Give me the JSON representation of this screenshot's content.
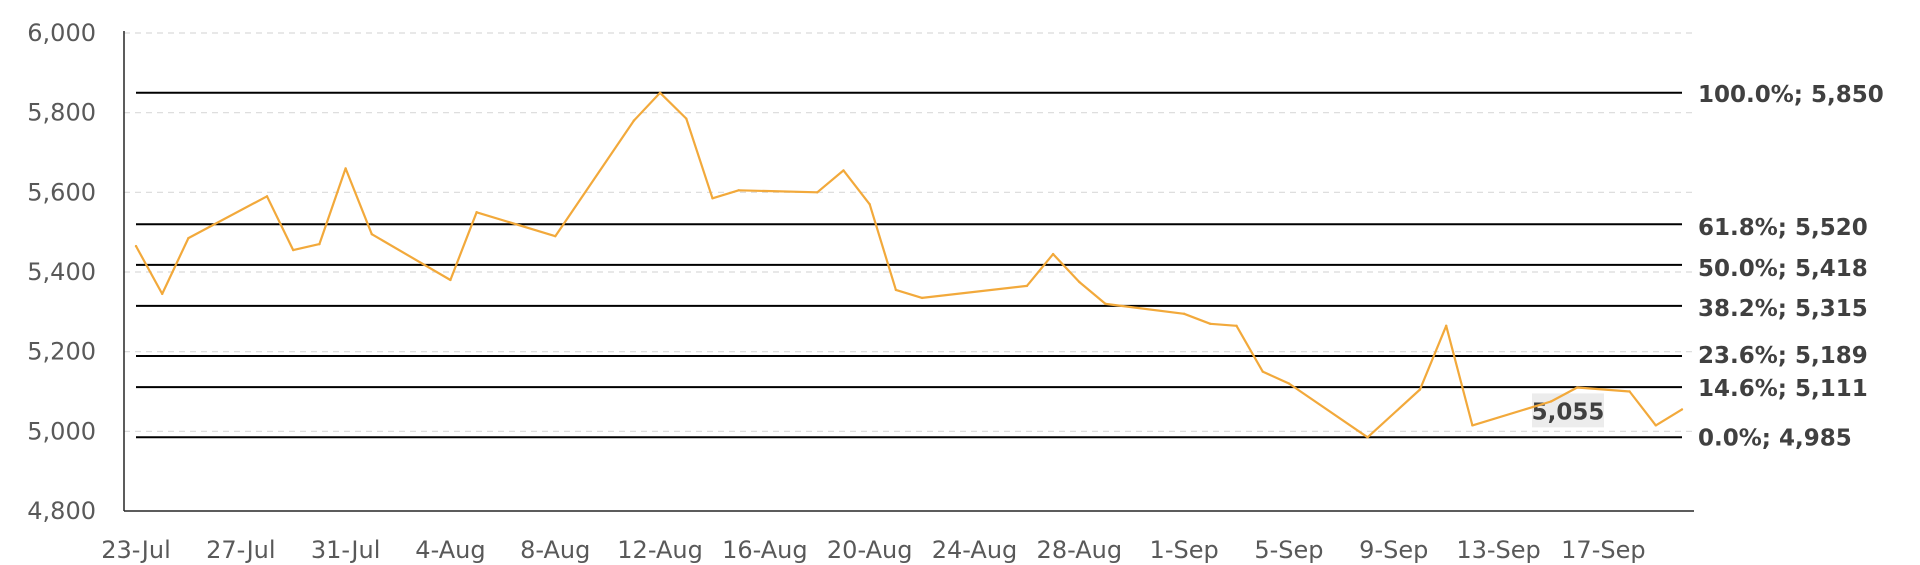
{
  "chart_data": {
    "type": "line",
    "title": "",
    "xlabel": "",
    "ylabel": "",
    "ylim": [
      4800,
      6000
    ],
    "y_ticks": [
      "4,800",
      "5,000",
      "5,200",
      "5,400",
      "5,600",
      "5,800",
      "6,000"
    ],
    "x_tick_labels": [
      "23-Jul",
      "27-Jul",
      "31-Jul",
      "4-Aug",
      "8-Aug",
      "12-Aug",
      "16-Aug",
      "20-Aug",
      "24-Aug",
      "28-Aug",
      "1-Sep",
      "5-Sep",
      "9-Sep",
      "13-Sep",
      "17-Sep"
    ],
    "x_start": "23-Jul",
    "x_end": "20-Sep",
    "grid": "horizontal dashed",
    "series": [
      {
        "color": "#F2A93B",
        "points": [
          {
            "x": "23-Jul",
            "y": 5465
          },
          {
            "x": "24-Jul",
            "y": 5345
          },
          {
            "x": "25-Jul",
            "y": 5485
          },
          {
            "x": "28-Jul",
            "y": 5590
          },
          {
            "x": "29-Jul",
            "y": 5455
          },
          {
            "x": "30-Jul",
            "y": 5470
          },
          {
            "x": "31-Jul",
            "y": 5660
          },
          {
            "x": "1-Aug",
            "y": 5495
          },
          {
            "x": "4-Aug",
            "y": 5380
          },
          {
            "x": "5-Aug",
            "y": 5550
          },
          {
            "x": "8-Aug",
            "y": 5490
          },
          {
            "x": "11-Aug",
            "y": 5780
          },
          {
            "x": "12-Aug",
            "y": 5850
          },
          {
            "x": "13-Aug",
            "y": 5785
          },
          {
            "x": "14-Aug",
            "y": 5585
          },
          {
            "x": "15-Aug",
            "y": 5605
          },
          {
            "x": "18-Aug",
            "y": 5600
          },
          {
            "x": "19-Aug",
            "y": 5655
          },
          {
            "x": "20-Aug",
            "y": 5570
          },
          {
            "x": "21-Aug",
            "y": 5355
          },
          {
            "x": "22-Aug",
            "y": 5335
          },
          {
            "x": "26-Aug",
            "y": 5365
          },
          {
            "x": "27-Aug",
            "y": 5445
          },
          {
            "x": "28-Aug",
            "y": 5375
          },
          {
            "x": "29-Aug",
            "y": 5320
          },
          {
            "x": "1-Sep",
            "y": 5295
          },
          {
            "x": "2-Sep",
            "y": 5270
          },
          {
            "x": "3-Sep",
            "y": 5265
          },
          {
            "x": "4-Sep",
            "y": 5150
          },
          {
            "x": "5-Sep",
            "y": 5120
          },
          {
            "x": "8-Sep",
            "y": 4985
          },
          {
            "x": "10-Sep",
            "y": 5105
          },
          {
            "x": "11-Sep",
            "y": 5265
          },
          {
            "x": "12-Sep",
            "y": 5015
          },
          {
            "x": "15-Sep",
            "y": 5075
          },
          {
            "x": "16-Sep",
            "y": 5110
          },
          {
            "x": "18-Sep",
            "y": 5100
          },
          {
            "x": "19-Sep",
            "y": 5015
          },
          {
            "x": "20-Sep",
            "y": 5055
          }
        ]
      }
    ],
    "fib_levels": [
      {
        "label": "100.0%; 5,850",
        "value": 5850
      },
      {
        "label": "61.8%; 5,520",
        "value": 5520
      },
      {
        "label": "50.0%; 5,418",
        "value": 5418
      },
      {
        "label": "38.2%; 5,315",
        "value": 5315
      },
      {
        "label": "23.6%; 5,189",
        "value": 5189
      },
      {
        "label": "14.6%; 5,111",
        "value": 5111
      },
      {
        "label": "0.0%; 4,985",
        "value": 4985
      }
    ],
    "last_value_label": "5,055"
  }
}
